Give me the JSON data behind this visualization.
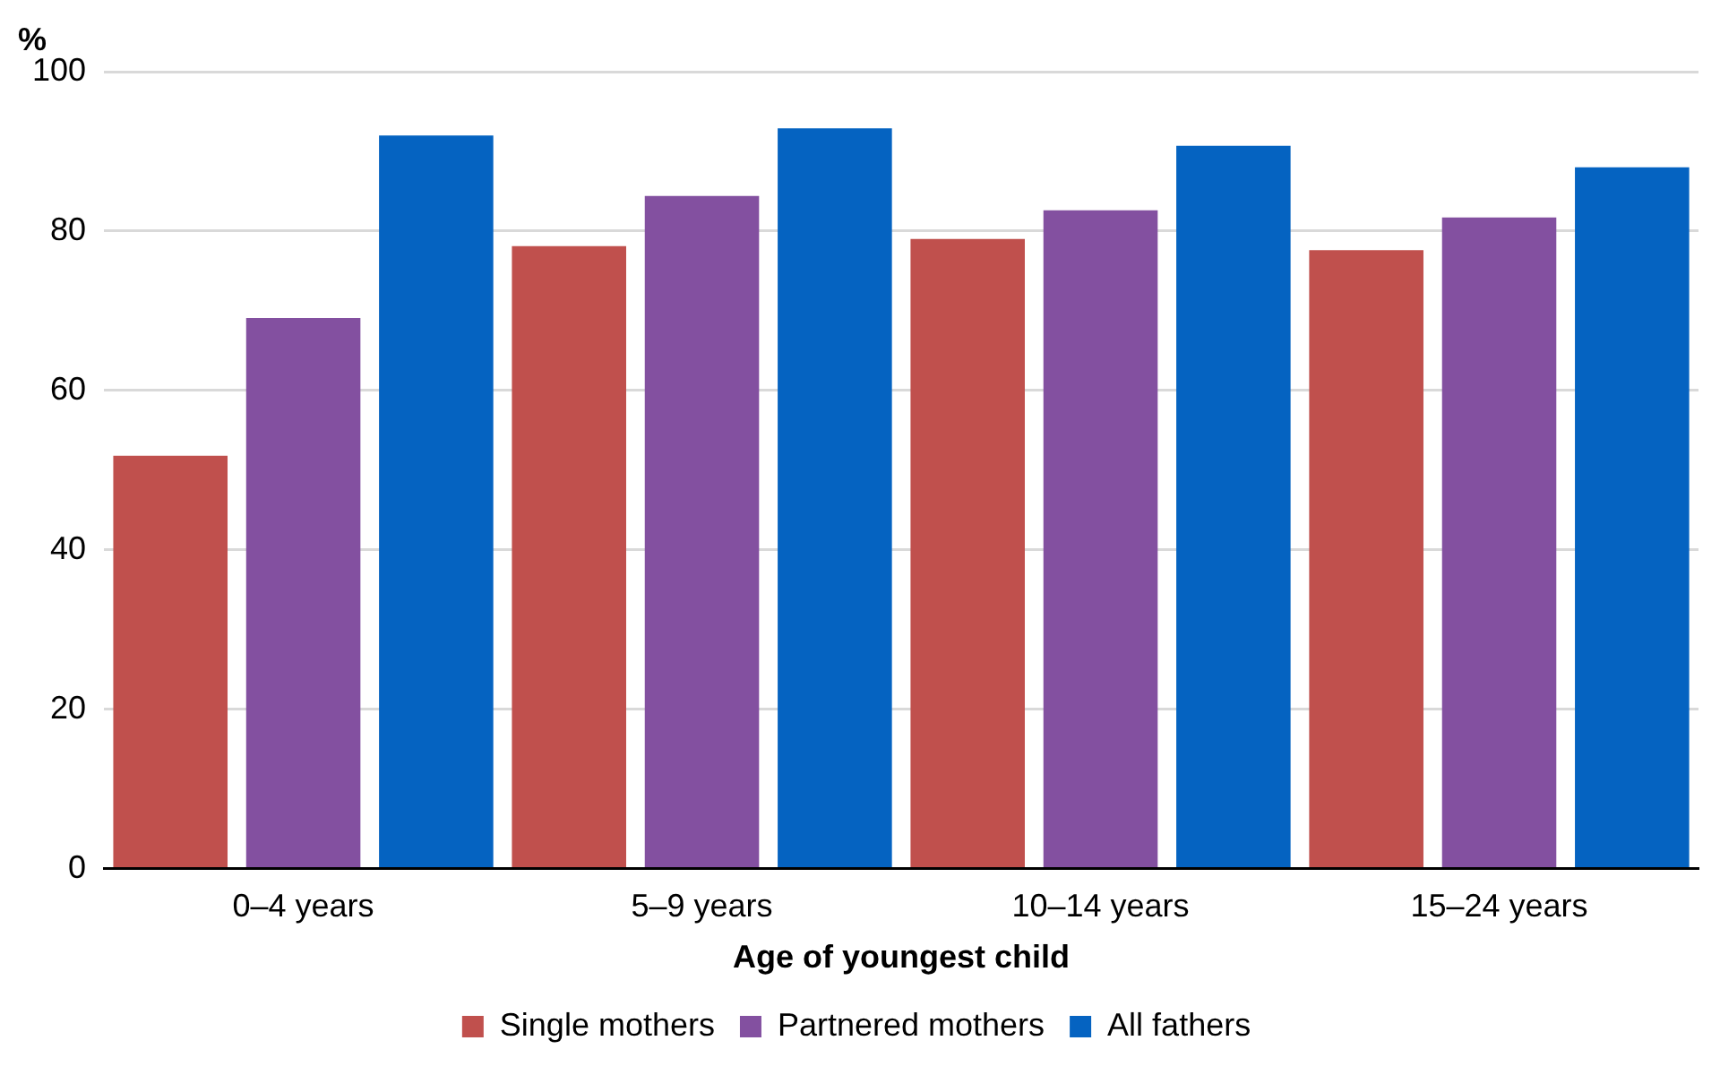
{
  "chart_data": {
    "type": "bar",
    "ylabel": "%",
    "xlabel": "Age of youngest child",
    "categories": [
      "0–4 years",
      "5–9 years",
      "10–14 years",
      "15–24 years"
    ],
    "series": [
      {
        "name": "Single mothers",
        "color": "#c0504d",
        "values": [
          51.8,
          78.1,
          79.0,
          77.6
        ]
      },
      {
        "name": "Partnered mothers",
        "color": "#8350a0",
        "values": [
          69.1,
          84.4,
          82.6,
          81.7
        ]
      },
      {
        "name": "All fathers",
        "color": "#0563c1",
        "values": [
          92.0,
          92.9,
          90.7,
          88.0
        ]
      }
    ],
    "ylim": [
      0,
      100
    ],
    "yticks": [
      0,
      20,
      40,
      60,
      80,
      100
    ],
    "grid": "y",
    "legend": "bottom"
  }
}
